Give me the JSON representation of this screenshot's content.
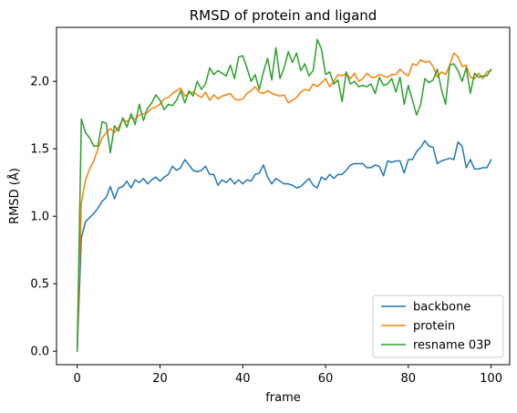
{
  "chart_data": {
    "type": "line",
    "title": "RMSD of protein and ligand",
    "xlabel": "frame",
    "ylabel": "RMSD (Å)",
    "xlim": [
      -5,
      104.5
    ],
    "ylim": [
      -0.1,
      2.4
    ],
    "xticks": [
      0,
      20,
      40,
      60,
      80,
      100
    ],
    "xtick_labels": [
      "0",
      "20",
      "40",
      "60",
      "80",
      "100"
    ],
    "yticks": [
      0.0,
      0.5,
      1.0,
      1.5,
      2.0
    ],
    "ytick_labels": [
      "0.0",
      "0.5",
      "1.0",
      "1.5",
      "2.0"
    ],
    "grid": false,
    "legend_position": "lower-right",
    "series": [
      {
        "name": "backbone",
        "color": "#1f77b4",
        "values": [
          0.0,
          0.84,
          0.96,
          0.99,
          1.02,
          1.06,
          1.11,
          1.14,
          1.22,
          1.13,
          1.21,
          1.22,
          1.26,
          1.21,
          1.27,
          1.25,
          1.28,
          1.24,
          1.27,
          1.29,
          1.26,
          1.29,
          1.31,
          1.37,
          1.34,
          1.36,
          1.42,
          1.38,
          1.34,
          1.33,
          1.34,
          1.37,
          1.31,
          1.31,
          1.23,
          1.27,
          1.25,
          1.28,
          1.24,
          1.27,
          1.24,
          1.27,
          1.26,
          1.31,
          1.32,
          1.38,
          1.29,
          1.24,
          1.28,
          1.26,
          1.24,
          1.24,
          1.23,
          1.21,
          1.22,
          1.25,
          1.28,
          1.23,
          1.21,
          1.29,
          1.27,
          1.31,
          1.28,
          1.31,
          1.31,
          1.34,
          1.38,
          1.39,
          1.39,
          1.39,
          1.36,
          1.36,
          1.38,
          1.37,
          1.3,
          1.41,
          1.4,
          1.41,
          1.41,
          1.32,
          1.42,
          1.42,
          1.48,
          1.51,
          1.56,
          1.52,
          1.51,
          1.39,
          1.41,
          1.42,
          1.43,
          1.42,
          1.55,
          1.52,
          1.36,
          1.42,
          1.35,
          1.35,
          1.36,
          1.36,
          1.42
        ]
      },
      {
        "name": "protein",
        "color": "#ff7f0e",
        "values": [
          0.0,
          1.1,
          1.27,
          1.35,
          1.41,
          1.5,
          1.58,
          1.62,
          1.65,
          1.62,
          1.66,
          1.72,
          1.7,
          1.73,
          1.72,
          1.75,
          1.76,
          1.77,
          1.8,
          1.81,
          1.83,
          1.87,
          1.88,
          1.91,
          1.93,
          1.95,
          1.89,
          1.91,
          1.92,
          1.9,
          1.88,
          1.92,
          1.86,
          1.9,
          1.87,
          1.89,
          1.9,
          1.91,
          1.87,
          1.86,
          1.87,
          1.91,
          1.93,
          1.96,
          1.92,
          1.91,
          1.93,
          1.91,
          1.9,
          1.89,
          1.9,
          1.84,
          1.86,
          1.88,
          1.92,
          1.94,
          1.93,
          1.98,
          1.96,
          1.99,
          2.02,
          1.96,
          2.0,
          2.05,
          2.04,
          2.06,
          2.02,
          2.06,
          2.0,
          2.02,
          2.06,
          2.03,
          2.03,
          2.05,
          2.04,
          2.03,
          2.05,
          2.05,
          2.09,
          2.06,
          2.04,
          2.13,
          2.12,
          2.16,
          2.14,
          2.15,
          2.11,
          2.03,
          2.07,
          2.05,
          2.12,
          2.21,
          2.18,
          2.11,
          2.12,
          2.03,
          2.02,
          2.06,
          2.02,
          2.07,
          2.08
        ]
      },
      {
        "name": "resname 03P",
        "color": "#2ca02c",
        "values": [
          0.0,
          1.72,
          1.62,
          1.58,
          1.52,
          1.52,
          1.7,
          1.69,
          1.47,
          1.67,
          1.63,
          1.73,
          1.66,
          1.76,
          1.68,
          1.83,
          1.71,
          1.8,
          1.84,
          1.9,
          1.86,
          1.79,
          1.83,
          1.82,
          1.86,
          1.93,
          1.84,
          1.93,
          1.89,
          2.0,
          1.94,
          1.98,
          2.1,
          2.05,
          2.08,
          2.06,
          2.04,
          2.12,
          2.02,
          2.18,
          2.19,
          2.1,
          2.0,
          2.05,
          1.94,
          2.07,
          2.17,
          2.01,
          2.25,
          2.02,
          2.1,
          2.22,
          2.14,
          2.21,
          2.08,
          2.13,
          2.04,
          2.08,
          2.31,
          2.24,
          2.05,
          2.07,
          1.98,
          2.01,
          1.85,
          2.07,
          1.98,
          2.0,
          1.96,
          1.97,
          1.96,
          1.98,
          1.91,
          2.03,
          1.97,
          1.98,
          2.02,
          1.92,
          2.03,
          1.83,
          1.97,
          1.86,
          1.75,
          1.83,
          2.02,
          1.99,
          2.01,
          2.09,
          1.94,
          1.83,
          2.12,
          2.13,
          2.08,
          2.0,
          2.1,
          1.91,
          2.06,
          2.03,
          2.04,
          2.04,
          2.09
        ]
      }
    ]
  }
}
